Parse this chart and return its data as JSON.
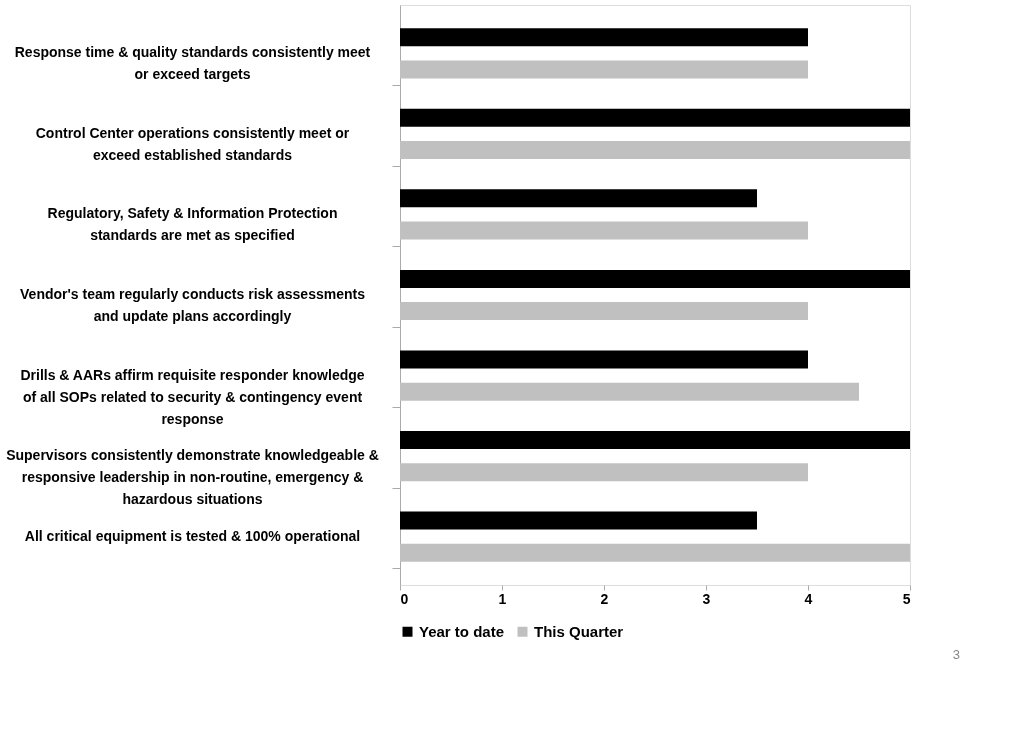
{
  "chart_data": {
    "type": "bar",
    "orientation": "horizontal",
    "categories": [
      "Response time & quality standards consistently meet or exceed targets",
      "Control Center operations consistently meet or exceed established standards",
      "Regulatory, Safety & Information Protection standards are met as specified",
      "Vendor's team regularly conducts risk assessments and update plans accordingly",
      "Drills & AARs affirm requisite responder knowledge of all SOPs related to security & contingency event response",
      "Supervisors consistently demonstrate knowledgeable & responsive leadership in non-routine, emergency & hazardous situations",
      "All critical equipment is tested & 100% operational"
    ],
    "series": [
      {
        "name": "Year to date",
        "color": "#000000",
        "values": [
          4,
          5,
          3.5,
          5,
          4,
          5,
          3.5
        ]
      },
      {
        "name": "This Quarter",
        "color": "#c0c0c0",
        "values": [
          4,
          5,
          4,
          4,
          4.5,
          4,
          5
        ]
      }
    ],
    "xlim": [
      0,
      5
    ],
    "xticks": [
      0,
      1,
      2,
      3,
      4,
      5
    ],
    "grid": false,
    "legend": "bottom",
    "annotations": [
      "3"
    ]
  }
}
